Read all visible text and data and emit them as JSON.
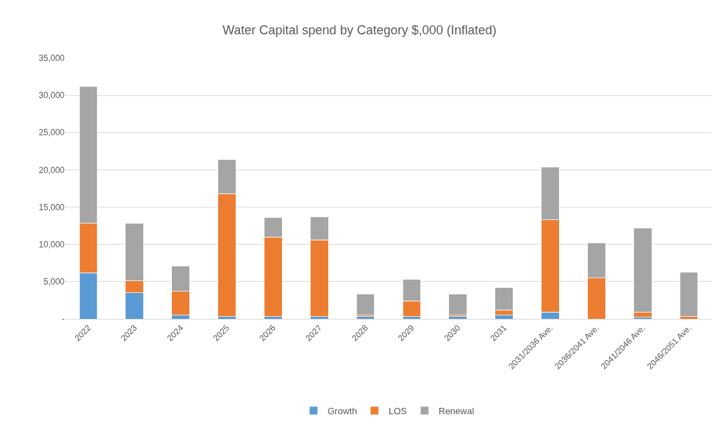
{
  "chart_data": {
    "type": "bar",
    "title": "Water Capital spend by Category $,000 (Inflated)",
    "categories": [
      "2022",
      "2023",
      "2024",
      "2025",
      "2026",
      "2027",
      "2028",
      "2029",
      "2030",
      "2031",
      "2031/2036 Ave.",
      "2036/2041 Ave.",
      "2041/2046 Ave.",
      "2046/2051 Ave."
    ],
    "series": [
      {
        "name": "Growth",
        "color": "#5b9bd5",
        "values": [
          6200,
          3500,
          500,
          300,
          300,
          300,
          300,
          300,
          300,
          500,
          900,
          0,
          200,
          0
        ]
      },
      {
        "name": "LOS",
        "color": "#ed7d31",
        "values": [
          6600,
          1600,
          3200,
          16500,
          10700,
          10300,
          200,
          2100,
          200,
          700,
          12400,
          5500,
          700,
          300
        ]
      },
      {
        "name": "Renewal",
        "color": "#a5a5a5",
        "values": [
          18400,
          7700,
          3400,
          4600,
          2600,
          3100,
          2800,
          2900,
          2800,
          3000,
          7100,
          4700,
          11300,
          6000
        ]
      }
    ],
    "stacked": true,
    "ylim": [
      0,
      35000
    ],
    "yticks": [
      {
        "value": 0,
        "label": "-"
      },
      {
        "value": 5000,
        "label": "5,000"
      },
      {
        "value": 10000,
        "label": "10,000"
      },
      {
        "value": 15000,
        "label": "15,000"
      },
      {
        "value": 20000,
        "label": "20,000"
      },
      {
        "value": 25000,
        "label": "25,000"
      },
      {
        "value": 30000,
        "label": "30,000"
      },
      {
        "value": 35000,
        "label": "35,000"
      }
    ],
    "grid": "y",
    "legend": "bottom"
  }
}
